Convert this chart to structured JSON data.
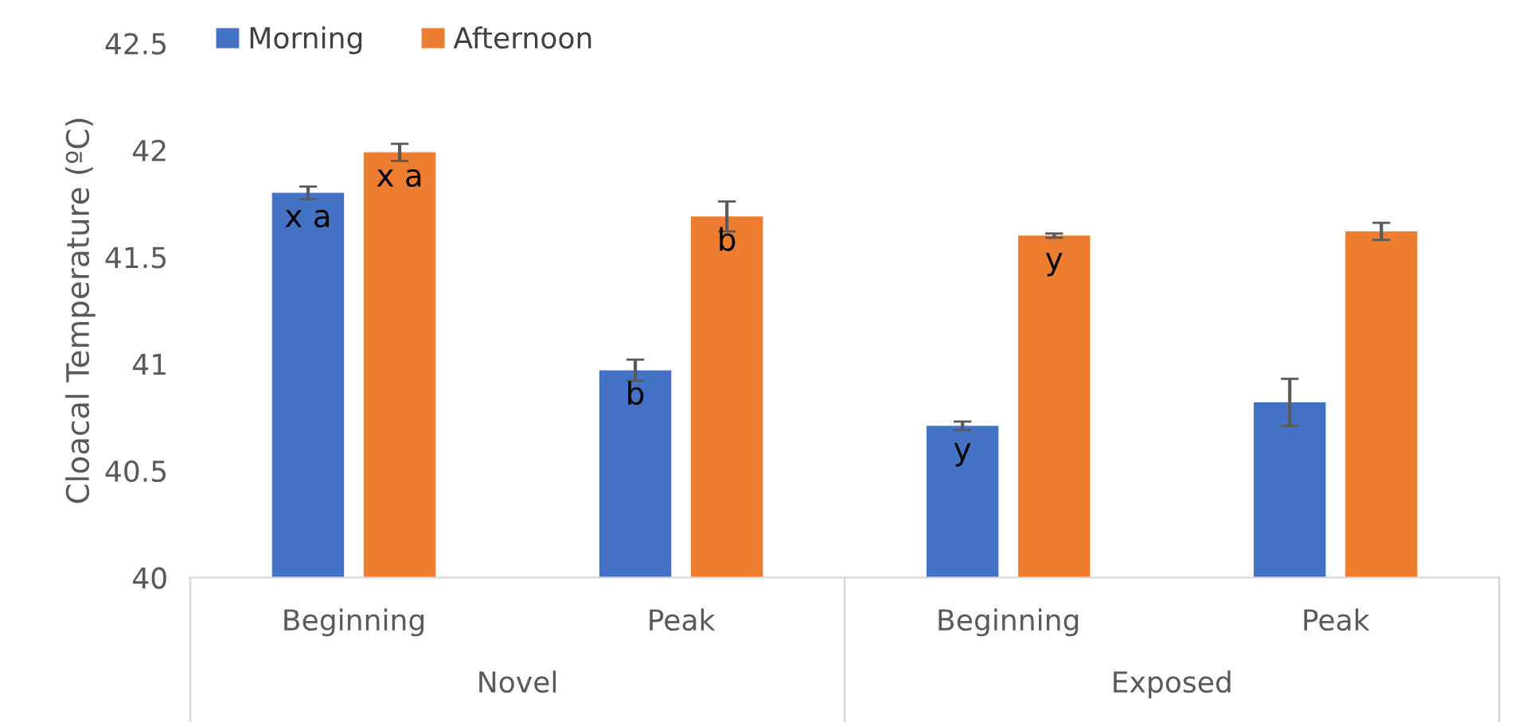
{
  "chart_data": {
    "type": "bar",
    "ylabel": "Cloacal Temperature (ºC)",
    "categories": [
      "Beginning",
      "Peak",
      "Beginning",
      "Peak"
    ],
    "annotations": [
      "Novel",
      "Exposed"
    ],
    "series": [
      {
        "name": "Morning",
        "color": "#4472c4",
        "values": [
          41.8,
          40.97,
          40.71,
          40.82
        ],
        "errors": [
          0.03,
          0.05,
          0.02,
          0.11
        ],
        "value_labels": [
          "x a",
          "b",
          "y",
          null
        ]
      },
      {
        "name": "Afternoon",
        "color": "#ed7d31",
        "values": [
          41.99,
          41.69,
          41.6,
          41.62
        ],
        "errors": [
          0.04,
          0.07,
          0.01,
          0.04
        ],
        "value_labels": [
          "x a",
          "b",
          "y",
          null
        ]
      }
    ],
    "ylim": [
      40,
      42.5
    ],
    "yticks": [
      40,
      40.5,
      41,
      41.5,
      42,
      42.5
    ],
    "grid": false,
    "legend": "top left"
  }
}
